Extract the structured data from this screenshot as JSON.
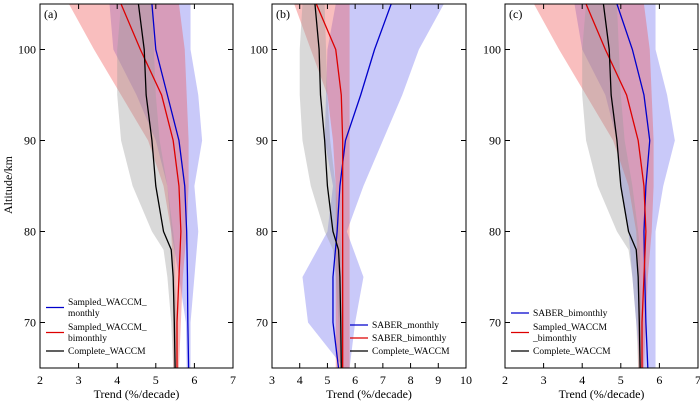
{
  "figure": {
    "ylabel": "Altitude/km",
    "xlabel": "Trend (%/decade)"
  },
  "chart_data": [
    {
      "type": "line",
      "panel_label": "(a)",
      "xlim": [
        2,
        7
      ],
      "ylim": [
        65,
        105
      ],
      "xticks": [
        "2",
        "3",
        "4",
        "5",
        "6",
        "7"
      ],
      "yticks": [
        "70",
        "80",
        "90",
        "100"
      ],
      "xlabel": "Trend (%/decade)",
      "ylabel": "Altitude/km",
      "legend_position": "lower-left",
      "series": [
        {
          "name": "Sampled_WACCM_\nmonthly",
          "color": "#0000cc",
          "band_color": "#7070ee",
          "y": [
            65,
            70,
            75,
            80,
            85,
            90,
            95,
            100,
            105
          ],
          "x": [
            5.85,
            5.83,
            5.82,
            5.8,
            5.75,
            5.6,
            5.3,
            5.0,
            4.9
          ],
          "band_low": [
            5.8,
            5.78,
            5.6,
            5.4,
            5.3,
            5.0,
            4.5,
            3.9,
            3.8
          ],
          "band_high": [
            5.9,
            5.9,
            6.0,
            6.1,
            6.0,
            6.2,
            6.1,
            5.9,
            5.9
          ]
        },
        {
          "name": "Sampled_WACCM_\nbimonthly",
          "color": "#dd0000",
          "band_color": "#ee5555",
          "y": [
            65,
            70,
            75,
            80,
            85,
            90,
            95,
            100,
            105
          ],
          "x": [
            5.55,
            5.55,
            5.6,
            5.65,
            5.6,
            5.45,
            5.15,
            4.6,
            4.1
          ],
          "band_low": [
            5.45,
            5.45,
            5.45,
            5.4,
            5.2,
            4.8,
            4.1,
            3.4,
            2.75
          ],
          "band_high": [
            5.6,
            5.65,
            5.7,
            5.8,
            5.85,
            5.85,
            5.8,
            5.75,
            5.6
          ]
        },
        {
          "name": "Complete_WACCM",
          "color": "#000000",
          "band_color": "#9a9a9a",
          "y": [
            65,
            70,
            75,
            78,
            80,
            85,
            90,
            95,
            100,
            105
          ],
          "x": [
            5.5,
            5.48,
            5.45,
            5.4,
            5.2,
            5.0,
            4.9,
            4.75,
            4.7,
            4.55
          ],
          "band_low": [
            5.45,
            5.4,
            5.3,
            5.2,
            4.9,
            4.4,
            4.1,
            4.0,
            4.0,
            4.1
          ],
          "band_high": [
            5.55,
            5.55,
            5.5,
            5.5,
            5.45,
            5.3,
            5.1,
            5.0,
            4.95,
            4.9
          ]
        }
      ]
    },
    {
      "type": "line",
      "panel_label": "(b)",
      "xlim": [
        3,
        10
      ],
      "ylim": [
        65,
        105
      ],
      "xticks": [
        "3",
        "4",
        "5",
        "6",
        "7",
        "8",
        "9",
        "10"
      ],
      "yticks": [
        "70",
        "80",
        "90",
        "100"
      ],
      "xlabel": "Trend (%/decade)",
      "ylabel": "",
      "legend_position": "lower-right",
      "series": [
        {
          "name": "SABER_monthly",
          "color": "#0000cc",
          "band_color": "#7070ee",
          "y": [
            65,
            70,
            75,
            80,
            85,
            90,
            95,
            100,
            105
          ],
          "x": [
            5.4,
            5.2,
            5.2,
            5.35,
            5.45,
            5.65,
            6.2,
            6.7,
            7.3
          ],
          "band_low": [
            5.6,
            4.3,
            4.1,
            5.0,
            5.2,
            4.9,
            4.95,
            5.0,
            5.3
          ],
          "band_high": [
            5.8,
            6.0,
            6.3,
            5.7,
            6.3,
            7.0,
            7.7,
            8.3,
            9.2
          ]
        },
        {
          "name": "SABER_bimonthly",
          "color": "#dd0000",
          "band_color": "#ee5555",
          "y": [
            65,
            70,
            75,
            80,
            85,
            90,
            95,
            100,
            105
          ],
          "x": [
            5.55,
            5.55,
            5.55,
            5.55,
            5.55,
            5.55,
            5.5,
            5.3,
            4.6
          ],
          "band_low": [
            5.3,
            5.3,
            5.3,
            5.3,
            5.3,
            5.2,
            5.0,
            4.4,
            3.8
          ],
          "band_high": [
            5.8,
            5.8,
            5.8,
            5.8,
            5.8,
            5.8,
            5.8,
            5.8,
            5.8
          ]
        },
        {
          "name": "Complete_WACCM",
          "color": "#000000",
          "band_color": "#9a9a9a",
          "y": [
            65,
            70,
            75,
            78,
            80,
            85,
            90,
            95,
            100,
            105
          ],
          "x": [
            5.5,
            5.48,
            5.45,
            5.4,
            5.2,
            5.0,
            4.9,
            4.75,
            4.7,
            4.55
          ],
          "band_low": [
            5.45,
            5.4,
            5.3,
            5.2,
            4.9,
            4.4,
            4.1,
            4.0,
            4.0,
            4.1
          ],
          "band_high": [
            5.55,
            5.55,
            5.5,
            5.5,
            5.45,
            5.3,
            5.1,
            5.0,
            4.95,
            4.9
          ]
        }
      ]
    },
    {
      "type": "line",
      "panel_label": "(c)",
      "xlim": [
        2,
        7
      ],
      "ylim": [
        65,
        105
      ],
      "xticks": [
        "2",
        "3",
        "4",
        "5",
        "6",
        "7"
      ],
      "yticks": [
        "70",
        "80",
        "90",
        "100"
      ],
      "xlabel": "Trend (%/decade)",
      "ylabel": "",
      "legend_position": "lower-left",
      "series": [
        {
          "name": "SABER_bimonthly",
          "color": "#0000cc",
          "band_color": "#7070ee",
          "y": [
            65,
            70,
            75,
            80,
            85,
            90,
            95,
            100,
            105
          ],
          "x": [
            5.7,
            5.65,
            5.62,
            5.6,
            5.65,
            5.75,
            5.6,
            5.3,
            4.9
          ],
          "band_low": [
            5.5,
            5.4,
            5.3,
            5.2,
            5.0,
            4.9,
            4.6,
            4.0,
            3.8
          ],
          "band_high": [
            5.9,
            5.9,
            5.9,
            5.9,
            6.1,
            6.4,
            6.2,
            5.9,
            5.9
          ]
        },
        {
          "name": "Sampled_WACCM\n_bimonthly",
          "color": "#dd0000",
          "band_color": "#ee5555",
          "y": [
            65,
            70,
            75,
            80,
            85,
            90,
            95,
            100,
            105
          ],
          "x": [
            5.55,
            5.55,
            5.6,
            5.65,
            5.6,
            5.45,
            5.15,
            4.6,
            4.1
          ],
          "band_low": [
            5.45,
            5.45,
            5.45,
            5.4,
            5.2,
            4.8,
            4.1,
            3.4,
            2.75
          ],
          "band_high": [
            5.6,
            5.65,
            5.7,
            5.8,
            5.85,
            5.85,
            5.8,
            5.75,
            5.6
          ]
        },
        {
          "name": "Complete_WACCM",
          "color": "#000000",
          "band_color": "#9a9a9a",
          "y": [
            65,
            70,
            75,
            78,
            80,
            85,
            90,
            95,
            100,
            105
          ],
          "x": [
            5.5,
            5.48,
            5.45,
            5.4,
            5.2,
            5.0,
            4.9,
            4.75,
            4.7,
            4.55
          ],
          "band_low": [
            5.45,
            5.4,
            5.3,
            5.2,
            4.9,
            4.4,
            4.1,
            4.0,
            4.0,
            4.1
          ],
          "band_high": [
            5.55,
            5.55,
            5.5,
            5.5,
            5.45,
            5.3,
            5.1,
            5.0,
            4.95,
            4.9
          ]
        }
      ]
    }
  ]
}
